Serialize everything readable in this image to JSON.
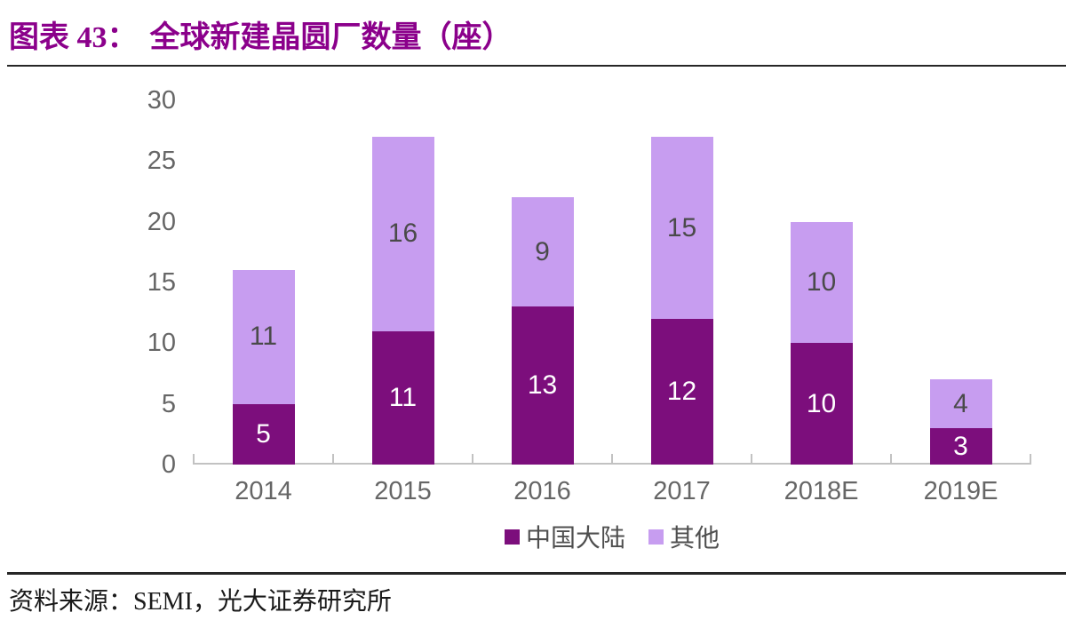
{
  "figure": {
    "label": "图表 43：",
    "title": "全球新建晶圆厂数量（座）"
  },
  "source": {
    "text": "资料来源：SEMI，光大证券研究所"
  },
  "colors": {
    "title": "#8B008B",
    "rule": "#262626",
    "axis_line": "#C2C2C2",
    "tick_label": "#666666",
    "legend_label": "#4F4F4F",
    "series_dark": "#7C0E7C",
    "series_light": "#C79DF0"
  },
  "chart_data": {
    "type": "bar",
    "stacked": true,
    "title": "全球新建晶圆厂数量（座）",
    "categories": [
      "2014",
      "2015",
      "2016",
      "2017",
      "2018E",
      "2019E"
    ],
    "series": [
      {
        "name": "中国大陆",
        "color": "#7C0E7C",
        "label_color": "#FFFFFF",
        "values": [
          5,
          11,
          13,
          12,
          10,
          3
        ]
      },
      {
        "name": "其他",
        "color": "#C79DF0",
        "label_color": "#4A4A4A",
        "values": [
          11,
          16,
          9,
          15,
          10,
          4
        ]
      }
    ],
    "totals": [
      16,
      27,
      22,
      27,
      20,
      7
    ],
    "yticks": [
      0,
      5,
      10,
      15,
      20,
      25,
      30
    ],
    "ylim": [
      0,
      30
    ],
    "grid": false,
    "legend_position": "bottom",
    "xlabel": "",
    "ylabel": ""
  }
}
